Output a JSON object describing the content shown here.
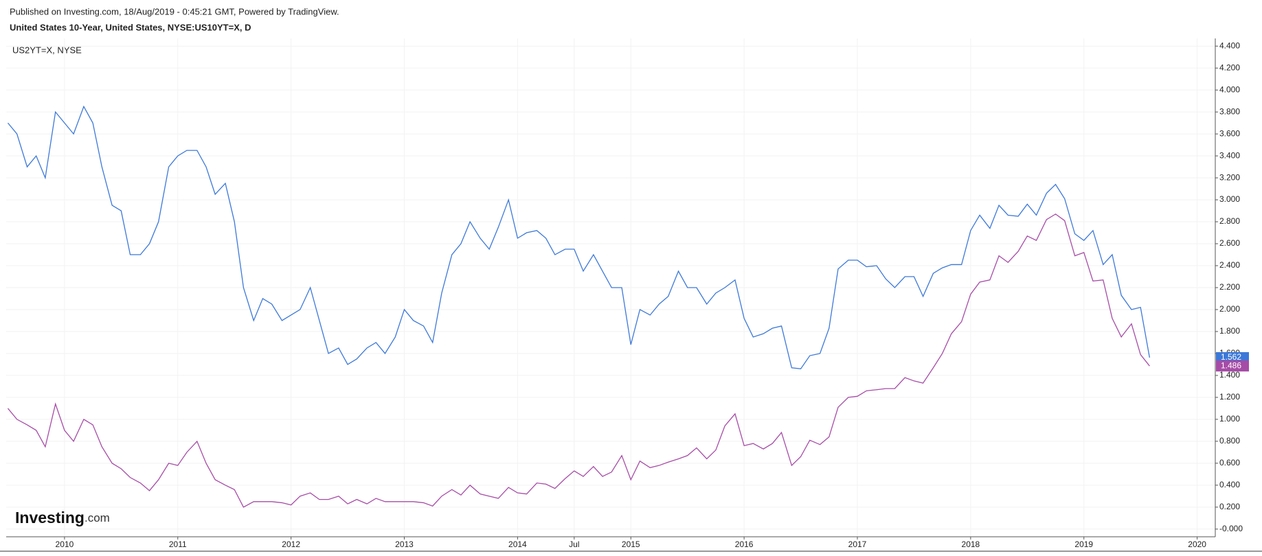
{
  "chart_data": {
    "type": "line",
    "title": "Published on Investing.com, 18/Aug/2019 - 0:45:21 GMT, Powered by TradingView.",
    "logo": [
      "Investing",
      ".com"
    ],
    "x": [
      2009.5,
      2009.58,
      2009.67,
      2009.75,
      2009.83,
      2009.92,
      2010.0,
      2010.08,
      2010.17,
      2010.25,
      2010.33,
      2010.42,
      2010.5,
      2010.58,
      2010.67,
      2010.75,
      2010.83,
      2010.92,
      2011.0,
      2011.08,
      2011.17,
      2011.25,
      2011.33,
      2011.42,
      2011.5,
      2011.58,
      2011.67,
      2011.75,
      2011.83,
      2011.92,
      2012.0,
      2012.08,
      2012.17,
      2012.25,
      2012.33,
      2012.42,
      2012.5,
      2012.58,
      2012.67,
      2012.75,
      2012.83,
      2012.92,
      2013.0,
      2013.08,
      2013.17,
      2013.25,
      2013.33,
      2013.42,
      2013.5,
      2013.58,
      2013.67,
      2013.75,
      2013.83,
      2013.92,
      2014.0,
      2014.08,
      2014.17,
      2014.25,
      2014.33,
      2014.42,
      2014.5,
      2014.58,
      2014.67,
      2014.75,
      2014.83,
      2014.92,
      2015.0,
      2015.08,
      2015.17,
      2015.25,
      2015.33,
      2015.42,
      2015.5,
      2015.58,
      2015.67,
      2015.75,
      2015.83,
      2015.92,
      2016.0,
      2016.08,
      2016.17,
      2016.25,
      2016.33,
      2016.42,
      2016.5,
      2016.58,
      2016.67,
      2016.75,
      2016.83,
      2016.92,
      2017.0,
      2017.08,
      2017.17,
      2017.25,
      2017.33,
      2017.42,
      2017.5,
      2017.58,
      2017.67,
      2017.75,
      2017.83,
      2017.92,
      2018.0,
      2018.08,
      2018.17,
      2018.25,
      2018.33,
      2018.42,
      2018.5,
      2018.58,
      2018.67,
      2018.75,
      2018.83,
      2018.92,
      2019.0,
      2019.08,
      2019.17,
      2019.25,
      2019.33,
      2019.42,
      2019.5,
      2019.58
    ],
    "series": [
      {
        "name": "United States 10-Year, United States, NYSE:US10YT=X, D",
        "color": "#3c78d8",
        "values": [
          3.7,
          3.6,
          3.3,
          3.4,
          3.2,
          3.8,
          3.7,
          3.6,
          3.85,
          3.7,
          3.3,
          2.95,
          2.9,
          2.5,
          2.5,
          2.6,
          2.8,
          3.3,
          3.4,
          3.45,
          3.45,
          3.3,
          3.05,
          3.15,
          2.8,
          2.2,
          1.9,
          2.1,
          2.05,
          1.9,
          1.95,
          2.0,
          2.2,
          1.9,
          1.6,
          1.65,
          1.5,
          1.55,
          1.65,
          1.7,
          1.6,
          1.75,
          2.0,
          1.9,
          1.85,
          1.7,
          2.15,
          2.5,
          2.6,
          2.8,
          2.65,
          2.55,
          2.75,
          3.0,
          2.65,
          2.7,
          2.72,
          2.65,
          2.5,
          2.55,
          2.55,
          2.35,
          2.5,
          2.35,
          2.2,
          2.2,
          1.68,
          2.0,
          1.95,
          2.05,
          2.12,
          2.35,
          2.2,
          2.2,
          2.05,
          2.15,
          2.2,
          2.27,
          1.92,
          1.75,
          1.78,
          1.83,
          1.85,
          1.47,
          1.46,
          1.58,
          1.6,
          1.83,
          2.37,
          2.45,
          2.45,
          2.39,
          2.4,
          2.28,
          2.2,
          2.3,
          2.3,
          2.12,
          2.33,
          2.38,
          2.41,
          2.41,
          2.72,
          2.86,
          2.74,
          2.95,
          2.86,
          2.85,
          2.96,
          2.86,
          3.06,
          3.14,
          3.01,
          2.69,
          2.63,
          2.72,
          2.41,
          2.5,
          2.13,
          2.0,
          2.02,
          1.562
        ]
      },
      {
        "name": "US2YT=X, NYSE",
        "color": "#a64ca6",
        "values": [
          1.1,
          1.0,
          0.95,
          0.9,
          0.75,
          1.14,
          0.9,
          0.8,
          1.0,
          0.95,
          0.75,
          0.6,
          0.55,
          0.47,
          0.42,
          0.35,
          0.45,
          0.6,
          0.58,
          0.7,
          0.8,
          0.6,
          0.45,
          0.4,
          0.36,
          0.2,
          0.25,
          0.25,
          0.25,
          0.24,
          0.22,
          0.3,
          0.33,
          0.27,
          0.27,
          0.3,
          0.23,
          0.27,
          0.23,
          0.28,
          0.25,
          0.25,
          0.25,
          0.25,
          0.24,
          0.21,
          0.3,
          0.36,
          0.31,
          0.4,
          0.32,
          0.3,
          0.28,
          0.38,
          0.33,
          0.32,
          0.42,
          0.41,
          0.37,
          0.46,
          0.53,
          0.48,
          0.57,
          0.48,
          0.52,
          0.67,
          0.45,
          0.62,
          0.56,
          0.58,
          0.61,
          0.64,
          0.67,
          0.74,
          0.64,
          0.72,
          0.94,
          1.05,
          0.76,
          0.78,
          0.73,
          0.78,
          0.88,
          0.58,
          0.66,
          0.81,
          0.77,
          0.84,
          1.11,
          1.2,
          1.21,
          1.26,
          1.27,
          1.28,
          1.28,
          1.38,
          1.35,
          1.33,
          1.47,
          1.6,
          1.78,
          1.89,
          2.14,
          2.25,
          2.27,
          2.49,
          2.43,
          2.53,
          2.67,
          2.63,
          2.82,
          2.87,
          2.81,
          2.49,
          2.52,
          2.26,
          2.27,
          1.92,
          1.75,
          1.87,
          1.59,
          1.486
        ]
      }
    ],
    "xlim": [
      2009.485,
      2020.16
    ],
    "xticks": [
      2010,
      2011,
      2012,
      2013,
      2014,
      {
        "value": 2014.5,
        "label": "Jul"
      },
      2015,
      2016,
      2017,
      2018,
      2019,
      2020
    ],
    "ylim": [
      -0.07,
      4.47
    ],
    "yticks": [
      {
        "value": 0,
        "label": "-0.000"
      },
      {
        "value": 0.2,
        "label": "0.200"
      },
      {
        "value": 0.4,
        "label": "0.400"
      },
      {
        "value": 0.6,
        "label": "0.600"
      },
      {
        "value": 0.8,
        "label": "0.800"
      },
      {
        "value": 1.0,
        "label": "1.000"
      },
      {
        "value": 1.2,
        "label": "1.200"
      },
      {
        "value": 1.4,
        "label": "1.400"
      },
      {
        "value": 1.6,
        "label": "1.600"
      },
      {
        "value": 1.8,
        "label": "1.800"
      },
      {
        "value": 2.0,
        "label": "2.000"
      },
      {
        "value": 2.2,
        "label": "2.200"
      },
      {
        "value": 2.4,
        "label": "2.400"
      },
      {
        "value": 2.6,
        "label": "2.600"
      },
      {
        "value": 2.8,
        "label": "2.800"
      },
      {
        "value": 3.0,
        "label": "3.000"
      },
      {
        "value": 3.2,
        "label": "3.200"
      },
      {
        "value": 3.4,
        "label": "3.400"
      },
      {
        "value": 3.6,
        "label": "3.600"
      },
      {
        "value": 3.8,
        "label": "3.800"
      },
      {
        "value": 4.0,
        "label": "4.000"
      },
      {
        "value": 4.2,
        "label": "4.200"
      },
      {
        "value": 4.4,
        "label": "4.400"
      }
    ],
    "grid": true
  }
}
